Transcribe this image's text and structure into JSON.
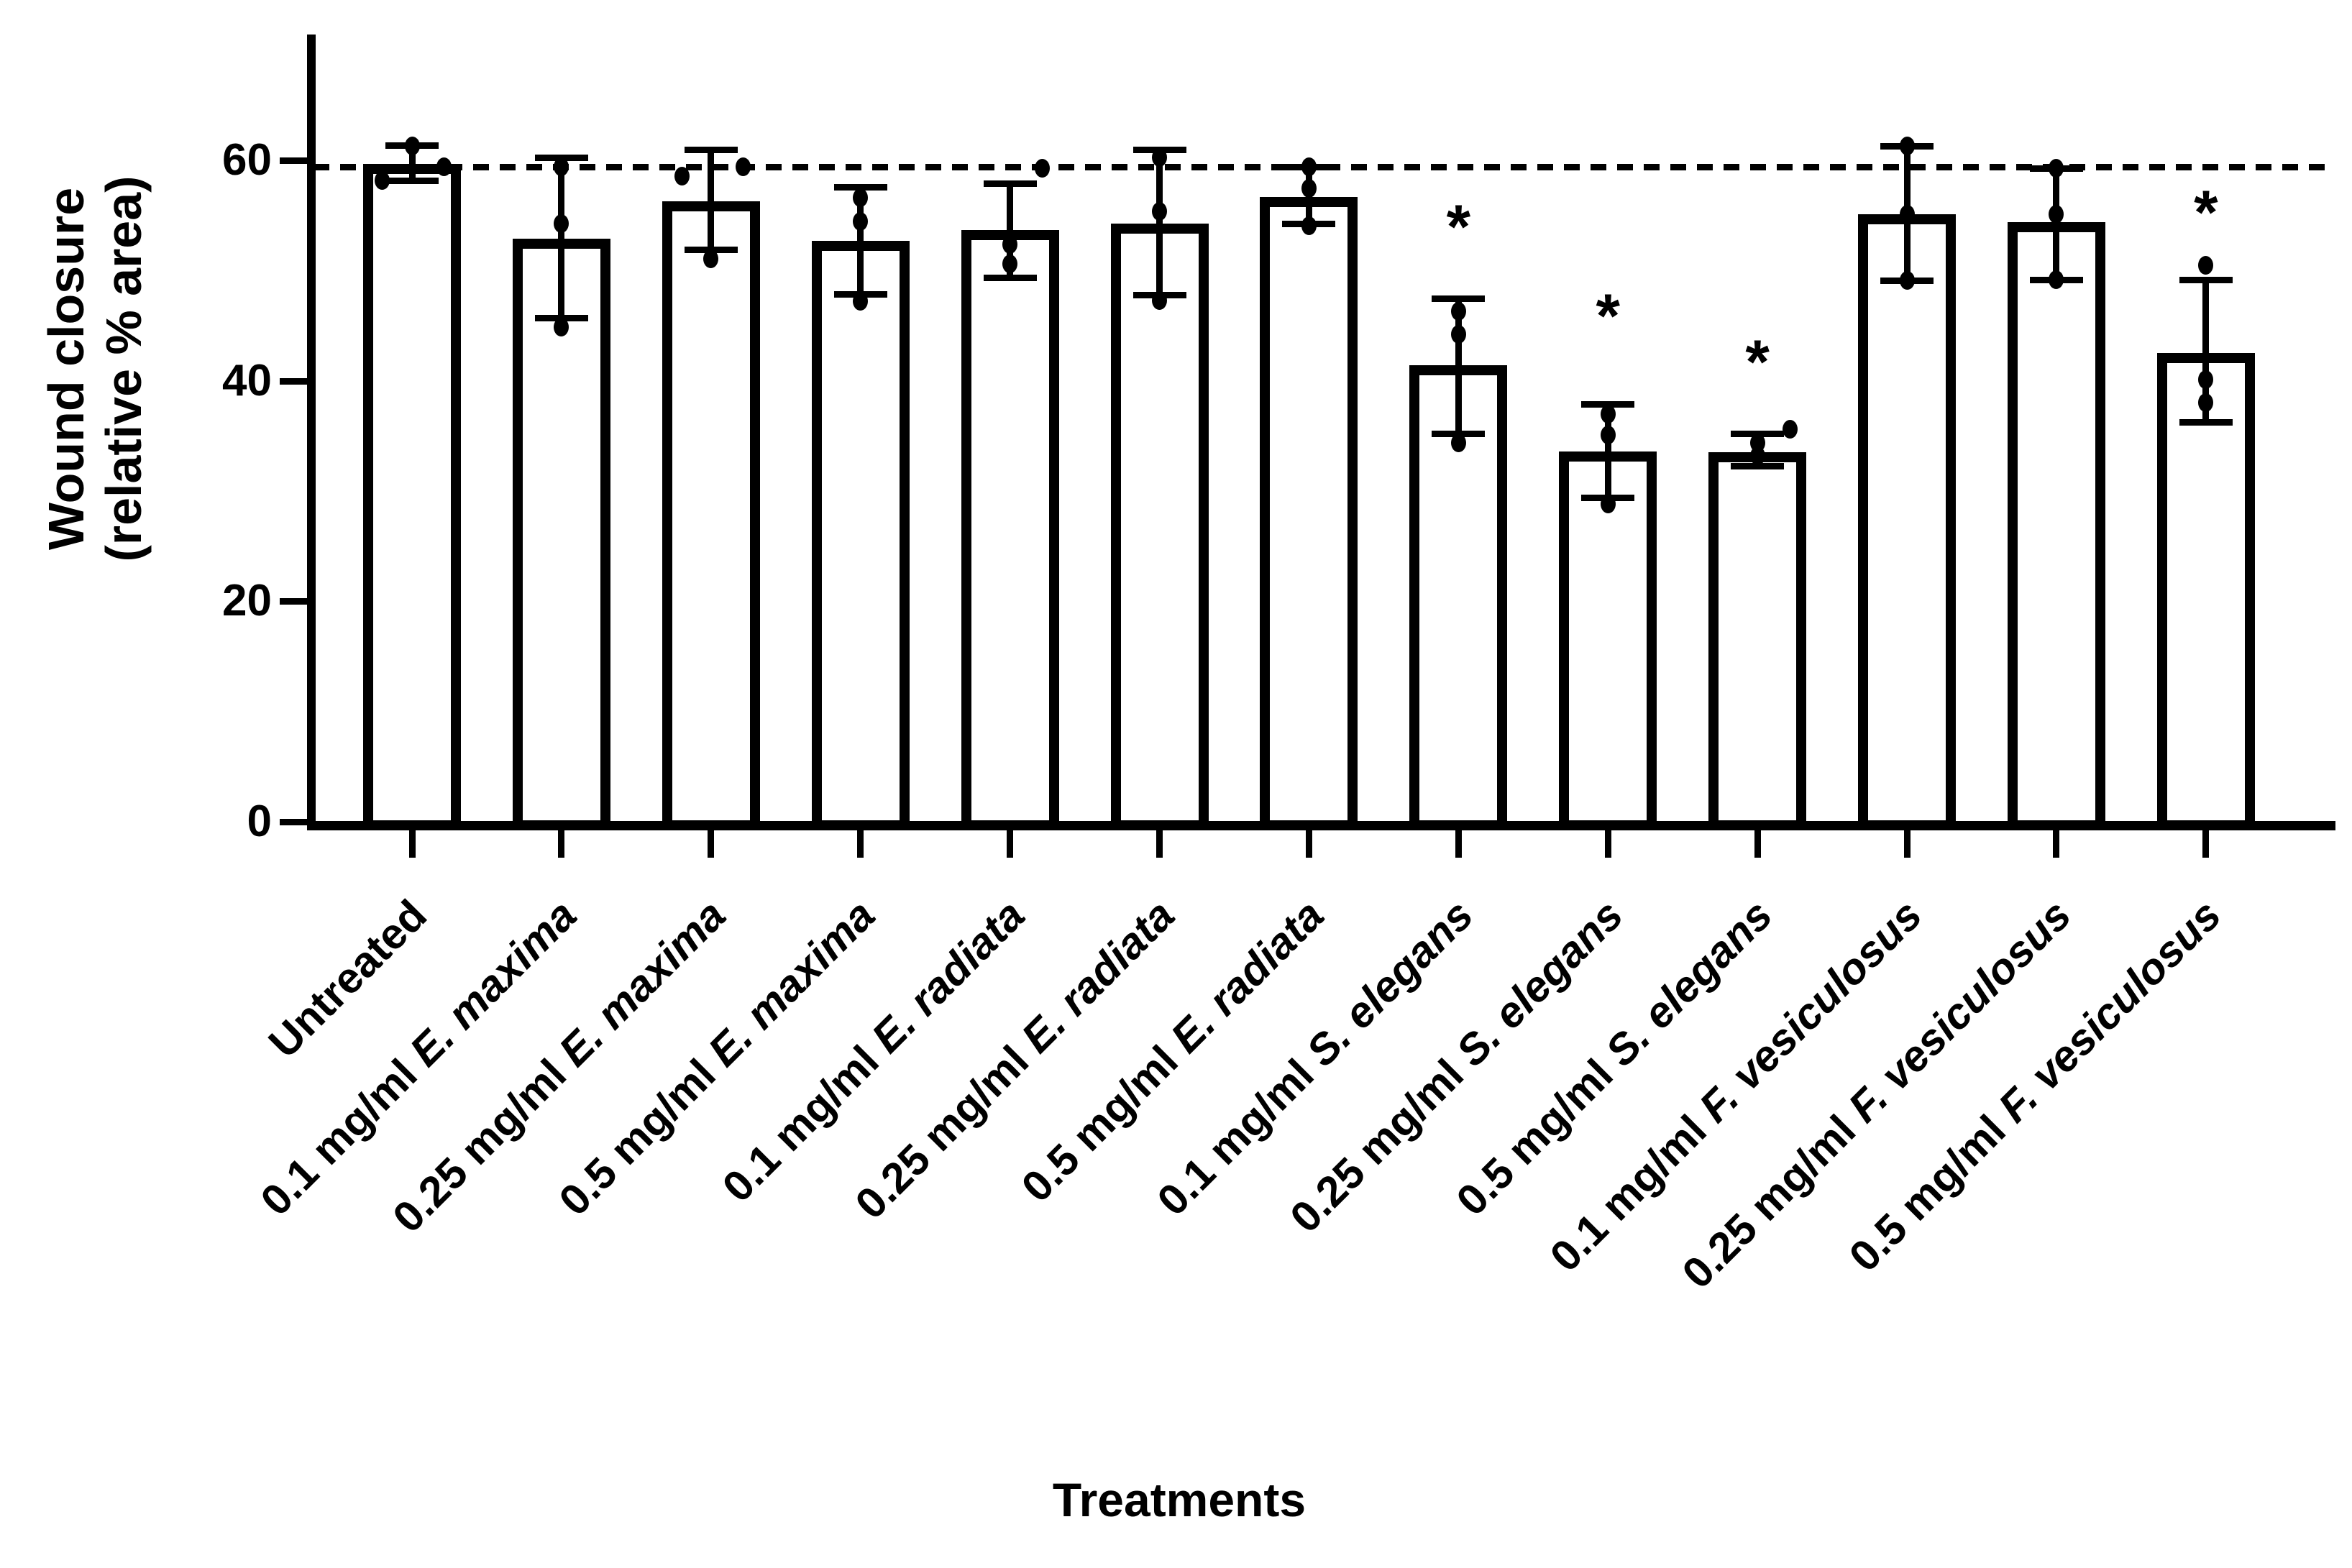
{
  "figure": {
    "y_axis": {
      "title_line1": "Wound closure",
      "title_line2": "(relative % area)",
      "tick_labels": [
        "0",
        "20",
        "40",
        "60"
      ]
    },
    "x_axis": {
      "title": "Treatments"
    },
    "significance_marker": "*",
    "colors": {
      "foreground": "#000000",
      "background": "#ffffff"
    }
  },
  "chart_data": {
    "type": "bar",
    "title": "",
    "xlabel": "Treatments",
    "ylabel": "Wound closure (relative % area)",
    "ylim": [
      0,
      71
    ],
    "yticks": [
      0,
      20,
      40,
      60
    ],
    "grid": false,
    "legend": "none",
    "reference_line_value": 59.4,
    "reference_line_style": "dashed",
    "error_bar_style": "sd-caps",
    "bar_fill": "#ffffff",
    "bar_border": "#000000",
    "categories": [
      "Untreated",
      "0.1 mg/ml E. maxima",
      "0.25 mg/ml E. maxima",
      "0.5 mg/ml E. maxima",
      "0.1 mg/ml E. radiata",
      "0.25 mg/ml E. radiata",
      "0.5 mg/ml E. radiata",
      "0.1 mg/ml S. elegans",
      "0.25 mg/ml S. elegans",
      "0.5 mg/ml S. elegans",
      "0.1 mg/ml F. vesiculosus",
      "0.25 mg/ml F. vesiculosus",
      "0.5 mg/ml F. vesiculosus"
    ],
    "bars": [
      {
        "label_prefix": "Untreated",
        "species": "",
        "mean": 59.7,
        "err_hi": 61.4,
        "err_lo": 58.2,
        "points": [
          {
            "v": 61.3,
            "dx": 0
          },
          {
            "v": 59.4,
            "dx": 44
          },
          {
            "v": 58.2,
            "dx": -42
          }
        ],
        "significant": false,
        "sig_v": 0
      },
      {
        "label_prefix": "0.1 mg/ml",
        "species": "E. maxima",
        "mean": 52.9,
        "err_hi": 60.3,
        "err_lo": 45.7,
        "points": [
          {
            "v": 59.4,
            "dx": 0
          },
          {
            "v": 54.3,
            "dx": 0
          },
          {
            "v": 44.9,
            "dx": 0
          }
        ],
        "significant": false,
        "sig_v": 0
      },
      {
        "label_prefix": "0.25 mg/ml",
        "species": "E. maxima",
        "mean": 56.3,
        "err_hi": 61.0,
        "err_lo": 51.9,
        "points": [
          {
            "v": 59.4,
            "dx": 45
          },
          {
            "v": 58.6,
            "dx": -40
          },
          {
            "v": 51.1,
            "dx": 0
          }
        ],
        "significant": false,
        "sig_v": 0
      },
      {
        "label_prefix": "0.5 mg/ml",
        "species": "E. maxima",
        "mean": 52.7,
        "err_hi": 57.6,
        "err_lo": 47.9,
        "points": [
          {
            "v": 56.6,
            "dx": 0
          },
          {
            "v": 54.5,
            "dx": 0
          },
          {
            "v": 47.2,
            "dx": 0
          }
        ],
        "significant": false,
        "sig_v": 0
      },
      {
        "label_prefix": "0.1 mg/ml",
        "species": "E. radiata",
        "mean": 53.7,
        "err_hi": 57.9,
        "err_lo": 49.4,
        "points": [
          {
            "v": 59.3,
            "dx": 45
          },
          {
            "v": 52.4,
            "dx": 0
          },
          {
            "v": 50.6,
            "dx": 0
          }
        ],
        "significant": false,
        "sig_v": 0
      },
      {
        "label_prefix": "0.25 mg/ml",
        "species": "E. radiata",
        "mean": 54.3,
        "err_hi": 61.0,
        "err_lo": 47.8,
        "points": [
          {
            "v": 60.3,
            "dx": 0
          },
          {
            "v": 55.4,
            "dx": 0
          },
          {
            "v": 47.3,
            "dx": 0
          }
        ],
        "significant": false,
        "sig_v": 0
      },
      {
        "label_prefix": "0.5 mg/ml",
        "species": "E. radiata",
        "mean": 56.7,
        "err_hi": 59.4,
        "err_lo": 54.3,
        "points": [
          {
            "v": 59.4,
            "dx": 0
          },
          {
            "v": 57.5,
            "dx": 0
          },
          {
            "v": 54.1,
            "dx": 0
          }
        ],
        "significant": false,
        "sig_v": 0
      },
      {
        "label_prefix": "0.1 mg/ml",
        "species": "S. elegans",
        "mean": 41.4,
        "err_hi": 47.5,
        "err_lo": 35.2,
        "points": [
          {
            "v": 46.3,
            "dx": 0
          },
          {
            "v": 44.2,
            "dx": 0
          },
          {
            "v": 34.4,
            "dx": 0
          }
        ],
        "significant": true,
        "sig_v": 54.3
      },
      {
        "label_prefix": "0.25 mg/ml",
        "species": "S. elegans",
        "mean": 33.6,
        "err_hi": 37.9,
        "err_lo": 29.4,
        "points": [
          {
            "v": 37.0,
            "dx": 0
          },
          {
            "v": 35.1,
            "dx": 0
          },
          {
            "v": 28.8,
            "dx": 0
          }
        ],
        "significant": true,
        "sig_v": 46.2
      },
      {
        "label_prefix": "0.5 mg/ml",
        "species": "S. elegans",
        "mean": 33.5,
        "err_hi": 35.2,
        "err_lo": 32.3,
        "points": [
          {
            "v": 35.6,
            "dx": 45
          },
          {
            "v": 34.4,
            "dx": 0
          },
          {
            "v": 33.2,
            "dx": 0
          }
        ],
        "significant": true,
        "sig_v": 42.0
      },
      {
        "label_prefix": "0.1 mg/ml",
        "species": "F. vesiculosus",
        "mean": 55.1,
        "err_hi": 61.3,
        "err_lo": 49.1,
        "points": [
          {
            "v": 61.3,
            "dx": 0
          },
          {
            "v": 55.1,
            "dx": 0
          },
          {
            "v": 49.1,
            "dx": 0
          }
        ],
        "significant": false,
        "sig_v": 0
      },
      {
        "label_prefix": "0.25 mg/ml",
        "species": "F. vesiculosus",
        "mean": 54.4,
        "err_hi": 59.3,
        "err_lo": 49.2,
        "points": [
          {
            "v": 59.3,
            "dx": 0
          },
          {
            "v": 55.1,
            "dx": 0
          },
          {
            "v": 49.2,
            "dx": 0
          }
        ],
        "significant": false,
        "sig_v": 0
      },
      {
        "label_prefix": "0.5 mg/ml",
        "species": "F. vesiculosus",
        "mean": 42.5,
        "err_hi": 49.2,
        "err_lo": 36.3,
        "points": [
          {
            "v": 50.5,
            "dx": 0
          },
          {
            "v": 40.1,
            "dx": 0
          },
          {
            "v": 38.0,
            "dx": 0
          }
        ],
        "significant": true,
        "sig_v": 55.6
      }
    ]
  }
}
